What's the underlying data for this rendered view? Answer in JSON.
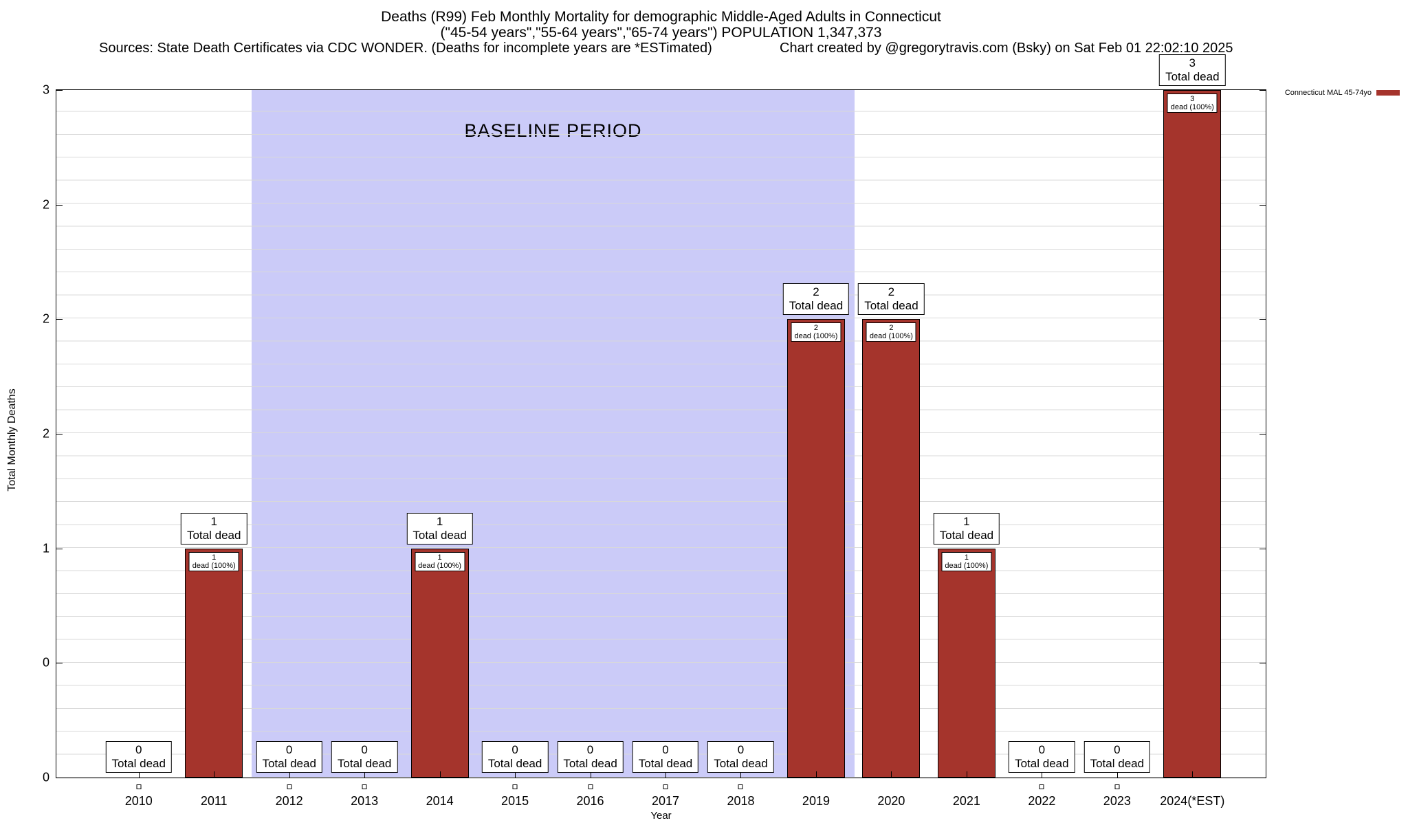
{
  "header": {
    "title": "Deaths (R99) Feb Monthly Mortality for demographic Middle-Aged Adults in Connecticut",
    "subtitle": "(\"45-54 years\",\"55-64 years\",\"65-74 years\") POPULATION 1,347,373",
    "sources": "Sources: State Death Certificates via CDC WONDER. (Deaths for incomplete years are *ESTimated)",
    "credit": "Chart created by @gregorytravis.com (Bsky) on Sat Feb 01 22:02:10 2025"
  },
  "legend": {
    "label": "Connecticut MAL 45-74yo",
    "color": "#a5342c"
  },
  "axes": {
    "ylabel": "Total Monthly Deaths",
    "xlabel": "Year",
    "ylim": [
      0,
      3
    ],
    "y_tick_labels_bottom_to_top": [
      "0",
      "0",
      "1",
      "2",
      "2",
      "2",
      "3"
    ]
  },
  "baseline": {
    "label": "BASELINE PERIOD",
    "from": "2012",
    "to": "2019",
    "color": "#cbcbf8"
  },
  "chart_data": {
    "type": "bar",
    "title": "Deaths (R99) Feb Monthly Mortality for demographic Middle-Aged Adults in Connecticut",
    "subtitle": "(\"45-54 years\",\"55-64 years\",\"65-74 years\") POPULATION 1,347,373",
    "xlabel": "Year",
    "ylabel": "Total Monthly Deaths",
    "ylim": [
      0,
      3
    ],
    "grid": "horizontal-minor",
    "legend_position": "top-right-outside",
    "series_name": "Connecticut MAL 45-74yo",
    "bar_color": "#a5342c",
    "categories": [
      "2010",
      "2011",
      "2012",
      "2013",
      "2014",
      "2015",
      "2016",
      "2017",
      "2018",
      "2019",
      "2020",
      "2021",
      "2022",
      "2023",
      "2024(*EST)"
    ],
    "values": [
      0,
      1,
      0,
      0,
      1,
      0,
      0,
      0,
      0,
      2,
      2,
      1,
      0,
      0,
      3
    ],
    "bar_value_label_suffix": "Total dead",
    "bar_percent_label_suffix": "dead (100%)",
    "zero_years_have_point_marker": true,
    "baseline_period": {
      "label": "BASELINE PERIOD",
      "from": "2012",
      "to": "2019"
    }
  }
}
